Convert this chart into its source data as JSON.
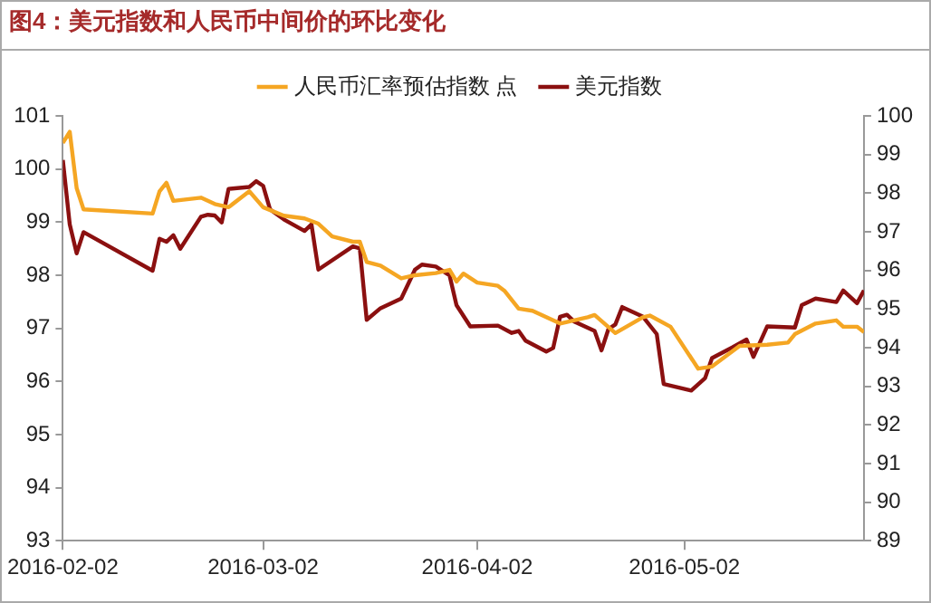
{
  "chart_data": {
    "type": "line",
    "title": "图4：美元指数和人民币中间价的环比变化",
    "xlim": [
      "2016-02-02",
      "2016-05-28"
    ],
    "xticks": [
      "2016-02-02",
      "2016-03-02",
      "2016-04-02",
      "2016-05-02"
    ],
    "ylim": [
      93,
      101
    ],
    "yticks": [
      93,
      94,
      95,
      96,
      97,
      98,
      99,
      100,
      101
    ],
    "y2lim": [
      89,
      100
    ],
    "y2ticks": [
      89,
      90,
      91,
      92,
      93,
      94,
      95,
      96,
      97,
      98,
      99,
      100
    ],
    "legend": "top",
    "series": [
      {
        "name": "人民币汇率预估指数 点",
        "color": "#f5a623",
        "x": [
          "2016-02-02",
          "2016-02-03",
          "2016-02-04",
          "2016-02-05",
          "2016-02-15",
          "2016-02-16",
          "2016-02-17",
          "2016-02-18",
          "2016-02-22",
          "2016-02-24",
          "2016-02-26",
          "2016-02-29",
          "2016-03-02",
          "2016-03-05",
          "2016-03-08",
          "2016-03-10",
          "2016-03-12",
          "2016-03-15",
          "2016-03-16",
          "2016-03-17",
          "2016-03-19",
          "2016-03-22",
          "2016-03-24",
          "2016-03-27",
          "2016-03-29",
          "2016-03-30",
          "2016-03-31",
          "2016-04-02",
          "2016-04-05",
          "2016-04-06",
          "2016-04-08",
          "2016-04-10",
          "2016-04-12",
          "2016-04-14",
          "2016-04-18",
          "2016-04-19",
          "2016-04-22",
          "2016-04-26",
          "2016-04-27",
          "2016-04-30",
          "2016-05-04",
          "2016-05-06",
          "2016-05-10",
          "2016-05-14",
          "2016-05-17",
          "2016-05-18",
          "2016-05-21",
          "2016-05-24",
          "2016-05-25",
          "2016-05-27",
          "2016-05-28"
        ],
        "values": [
          100.49,
          100.7,
          99.64,
          99.24,
          99.16,
          99.58,
          99.74,
          99.4,
          99.46,
          99.34,
          99.28,
          99.58,
          99.28,
          99.12,
          99.07,
          98.97,
          98.73,
          98.63,
          98.63,
          98.25,
          98.18,
          97.94,
          98.0,
          98.04,
          98.1,
          97.88,
          98.03,
          97.86,
          97.8,
          97.7,
          97.37,
          97.33,
          97.21,
          97.09,
          97.21,
          97.25,
          96.91,
          97.21,
          97.24,
          97.03,
          96.24,
          96.28,
          96.67,
          96.69,
          96.73,
          96.89,
          97.09,
          97.15,
          97.03,
          97.03,
          96.93
        ]
      },
      {
        "name": "美元指数",
        "color": "#8b1010",
        "axis": "y2",
        "x": [
          "2016-02-02",
          "2016-02-03",
          "2016-02-04",
          "2016-02-05",
          "2016-02-15",
          "2016-02-16",
          "2016-02-17",
          "2016-02-18",
          "2016-02-19",
          "2016-02-22",
          "2016-02-23",
          "2016-02-24",
          "2016-02-25",
          "2016-02-26",
          "2016-02-29",
          "2016-03-01",
          "2016-03-02",
          "2016-03-03",
          "2016-03-05",
          "2016-03-08",
          "2016-03-09",
          "2016-03-10",
          "2016-03-15",
          "2016-03-16",
          "2016-03-17",
          "2016-03-19",
          "2016-03-22",
          "2016-03-24",
          "2016-03-25",
          "2016-03-27",
          "2016-03-29",
          "2016-03-30",
          "2016-04-01",
          "2016-04-05",
          "2016-04-07",
          "2016-04-08",
          "2016-04-09",
          "2016-04-12",
          "2016-04-13",
          "2016-04-14",
          "2016-04-15",
          "2016-04-16",
          "2016-04-19",
          "2016-04-20",
          "2016-04-21",
          "2016-04-22",
          "2016-04-23",
          "2016-04-26",
          "2016-04-28",
          "2016-04-29",
          "2016-05-03",
          "2016-05-05",
          "2016-05-06",
          "2016-05-09",
          "2016-05-11",
          "2016-05-12",
          "2016-05-14",
          "2016-05-18",
          "2016-05-19",
          "2016-05-21",
          "2016-05-24",
          "2016-05-25",
          "2016-05-27",
          "2016-05-28"
        ],
        "values": [
          98.86,
          97.19,
          96.44,
          96.99,
          95.99,
          96.82,
          96.74,
          96.91,
          96.56,
          97.39,
          97.44,
          97.42,
          97.24,
          98.11,
          98.16,
          98.31,
          98.19,
          97.58,
          97.32,
          97.02,
          97.19,
          96.02,
          96.62,
          96.57,
          94.72,
          95.02,
          95.27,
          96.02,
          96.15,
          96.1,
          95.87,
          95.1,
          94.55,
          94.57,
          94.38,
          94.43,
          94.18,
          93.9,
          93.99,
          94.8,
          94.85,
          94.68,
          94.43,
          93.93,
          94.48,
          94.6,
          95.05,
          94.8,
          94.35,
          93.06,
          92.89,
          93.21,
          93.73,
          94.01,
          94.21,
          93.76,
          94.55,
          94.52,
          95.1,
          95.27,
          95.18,
          95.48,
          95.15,
          95.48
        ]
      }
    ]
  }
}
